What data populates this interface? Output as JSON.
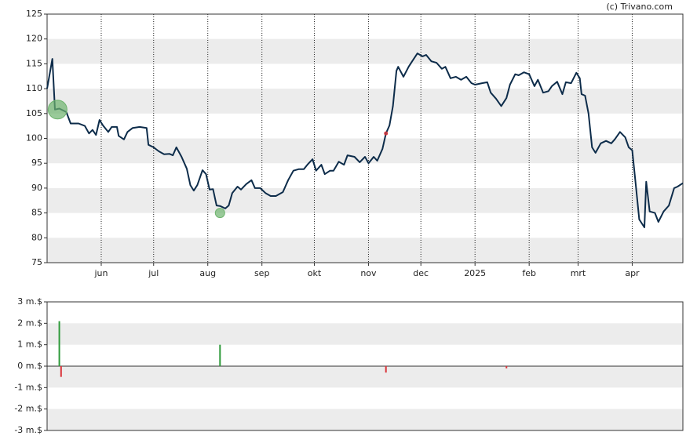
{
  "credit": "(c) Trivano.com",
  "chart_data": [
    {
      "type": "line",
      "color": "#0d2c4a",
      "x": [
        0,
        3,
        4.5,
        7,
        11,
        13.5,
        18,
        21.6,
        24,
        26,
        28,
        30,
        32,
        35,
        37,
        40,
        41,
        44,
        46,
        49,
        53,
        57,
        58,
        61,
        64,
        67,
        70,
        72,
        74,
        77,
        80,
        82,
        84,
        86,
        89,
        91,
        93,
        95,
        97,
        99,
        102,
        104,
        106,
        109,
        111,
        114,
        117,
        119,
        122,
        125,
        128,
        131,
        135,
        138,
        141,
        144,
        147,
        149,
        152,
        154,
        157,
        159,
        162,
        164,
        167,
        170,
        172,
        176,
        179,
        182,
        184,
        187,
        189,
        192,
        194,
        196,
        198,
        200,
        201,
        204,
        207,
        209,
        212,
        215,
        217,
        220,
        223,
        226,
        228,
        231,
        234,
        237,
        240,
        243,
        245,
        249,
        252,
        254,
        257,
        260,
        263,
        265,
        268,
        270,
        273,
        276,
        279,
        281,
        284,
        287,
        289,
        292,
        295,
        297,
        300,
        303,
        305,
        306,
        308,
        310,
        312,
        314,
        317,
        320,
        323,
        325,
        328,
        331,
        333,
        335,
        337,
        339,
        342,
        343,
        345,
        348,
        350,
        353,
        356,
        359,
        361,
        364
      ],
      "values": [
        110,
        116,
        105.8,
        106,
        105.3,
        103,
        103,
        102.5,
        101,
        101.7,
        100.7,
        103.7,
        102.6,
        101.3,
        102.3,
        102.3,
        100.5,
        99.8,
        101.3,
        102.1,
        102.3,
        102.1,
        98.7,
        98.2,
        97.4,
        96.8,
        96.9,
        96.6,
        98.2,
        96.3,
        93.9,
        90.6,
        89.5,
        90.6,
        93.6,
        92.8,
        89.7,
        89.8,
        86.5,
        86.4,
        85.9,
        86.5,
        89,
        90.3,
        89.7,
        90.8,
        91.6,
        90,
        90,
        89,
        88.4,
        88.4,
        89.2,
        91.6,
        93.5,
        93.8,
        93.8,
        94.7,
        95.8,
        93.5,
        94.7,
        92.8,
        93.5,
        93.5,
        95.3,
        94.7,
        96.6,
        96.3,
        95.2,
        96.3,
        95,
        96.3,
        95.5,
        97.9,
        101,
        102.6,
        106.5,
        113.6,
        114.4,
        112.4,
        114.4,
        115.5,
        117.1,
        116.5,
        116.8,
        115.5,
        115.2,
        114,
        114.4,
        112.1,
        112.4,
        111.8,
        112.4,
        111.1,
        110.8,
        111.1,
        111.3,
        109.2,
        108,
        106.5,
        108.1,
        110.8,
        112.9,
        112.7,
        113.3,
        112.9,
        110.5,
        111.8,
        109.2,
        109.5,
        110.5,
        111.4,
        108.9,
        111.3,
        111.1,
        113.2,
        112.1,
        108.9,
        108.6,
        105,
        98.2,
        97.1,
        99,
        99.5,
        99,
        99.8,
        101.3,
        100.2,
        98.2,
        97.6,
        90.8,
        83.7,
        82.1,
        91.3,
        85.3,
        85,
        83.2,
        85.3,
        86.5,
        90,
        90.3,
        91
      ],
      "markers": {
        "x": [
          6,
          99,
          194
        ],
        "values": [
          105.8,
          85,
          101
        ],
        "colors": [
          "#6db36d",
          "#6db36d",
          "#d9343a"
        ]
      },
      "xlim": [
        0,
        364
      ],
      "xticks": [
        {
          "value": 31,
          "label": "jun"
        },
        {
          "value": 61,
          "label": "jul"
        },
        {
          "value": 92,
          "label": "aug"
        },
        {
          "value": 123,
          "label": "sep"
        },
        {
          "value": 153,
          "label": "okt"
        },
        {
          "value": 184,
          "label": "nov"
        },
        {
          "value": 214,
          "label": "dec"
        },
        {
          "value": 245,
          "label": "2025"
        },
        {
          "value": 276,
          "label": "feb"
        },
        {
          "value": 304,
          "label": "mrt"
        },
        {
          "value": 335,
          "label": "apr"
        }
      ],
      "ylim": [
        75,
        125
      ],
      "yticks": [
        75,
        80,
        85,
        90,
        95,
        100,
        105,
        110,
        115,
        120,
        125
      ],
      "grid": true
    },
    {
      "type": "bar",
      "x": [
        7,
        8,
        99,
        194,
        263
      ],
      "values": [
        2.1,
        -0.5,
        1.0,
        -0.3,
        -0.1
      ],
      "colors": [
        "#2e9a3a",
        "#d9343a",
        "#2e9a3a",
        "#d9343a",
        "#d9343a"
      ],
      "xlim": [
        0,
        364
      ],
      "ylim": [
        -3,
        3
      ],
      "yticks": [
        {
          "value": -3,
          "label": "-3 m.$"
        },
        {
          "value": -2,
          "label": "-2 m.$"
        },
        {
          "value": -1,
          "label": "-1 m.$"
        },
        {
          "value": 0,
          "label": "0 m.$"
        },
        {
          "value": 1,
          "label": "1 m.$"
        },
        {
          "value": 2,
          "label": "2 m.$"
        },
        {
          "value": 3,
          "label": "3 m.$"
        }
      ],
      "grid": true
    }
  ]
}
